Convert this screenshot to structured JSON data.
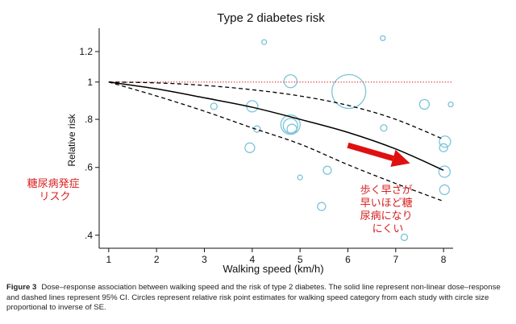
{
  "chart_data": {
    "type": "scatter",
    "title": "Type 2 diabetes risk",
    "xlabel": "Walking speed (km/h)",
    "ylabel": "Relative risk",
    "y_scale": "log",
    "xlim": [
      0.8,
      8.2
    ],
    "ylim": [
      0.37,
      1.38
    ],
    "xticks": [
      1,
      2,
      3,
      4,
      5,
      6,
      7,
      8
    ],
    "yticks": [
      {
        "value": 0.4,
        "label": ".4"
      },
      {
        "value": 0.6,
        "label": ".6"
      },
      {
        "value": 0.8,
        "label": ".8"
      },
      {
        "value": 1.0,
        "label": "1"
      },
      {
        "value": 1.2,
        "label": "1.2"
      }
    ],
    "reference_line": {
      "y": 1.0,
      "style": "dotted",
      "color": "#e04040"
    },
    "series": [
      {
        "name": "Non-linear dose-response",
        "style": "solid",
        "color": "#000000",
        "points": [
          [
            1,
            1.0
          ],
          [
            2,
            0.96
          ],
          [
            3,
            0.91
          ],
          [
            4,
            0.86
          ],
          [
            5,
            0.8
          ],
          [
            6,
            0.74
          ],
          [
            7,
            0.67
          ],
          [
            8,
            0.59
          ]
        ]
      },
      {
        "name": "Upper 95% CI",
        "style": "dashed",
        "color": "#000000",
        "points": [
          [
            1,
            1.0
          ],
          [
            2,
            0.995
          ],
          [
            3,
            0.98
          ],
          [
            4,
            0.955
          ],
          [
            5,
            0.92
          ],
          [
            6,
            0.87
          ],
          [
            7,
            0.8
          ],
          [
            8,
            0.71
          ]
        ]
      },
      {
        "name": "Lower 95% CI",
        "style": "dashed",
        "color": "#000000",
        "points": [
          [
            1,
            1.0
          ],
          [
            2,
            0.92
          ],
          [
            3,
            0.84
          ],
          [
            4,
            0.76
          ],
          [
            5,
            0.69
          ],
          [
            6,
            0.61
          ],
          [
            7,
            0.545
          ],
          [
            8,
            0.49
          ]
        ]
      }
    ],
    "points": [
      {
        "x": 4.25,
        "y": 1.27,
        "size": 3
      },
      {
        "x": 6.73,
        "y": 1.3,
        "size": 3
      },
      {
        "x": 8.15,
        "y": 0.875,
        "size": 3
      },
      {
        "x": 4.8,
        "y": 1.005,
        "size": 8
      },
      {
        "x": 6.02,
        "y": 0.945,
        "size": 21
      },
      {
        "x": 3.2,
        "y": 0.865,
        "size": 4
      },
      {
        "x": 4.0,
        "y": 0.865,
        "size": 7
      },
      {
        "x": 7.6,
        "y": 0.875,
        "size": 6
      },
      {
        "x": 4.8,
        "y": 0.775,
        "size": 12
      },
      {
        "x": 4.8,
        "y": 0.77,
        "size": 9
      },
      {
        "x": 4.83,
        "y": 0.755,
        "size": 6
      },
      {
        "x": 4.1,
        "y": 0.755,
        "size": 4
      },
      {
        "x": 6.75,
        "y": 0.76,
        "size": 4
      },
      {
        "x": 8.03,
        "y": 0.7,
        "size": 7
      },
      {
        "x": 8.0,
        "y": 0.675,
        "size": 5
      },
      {
        "x": 3.95,
        "y": 0.675,
        "size": 6
      },
      {
        "x": 5.57,
        "y": 0.59,
        "size": 5
      },
      {
        "x": 5.0,
        "y": 0.565,
        "size": 3
      },
      {
        "x": 8.02,
        "y": 0.585,
        "size": 7
      },
      {
        "x": 8.02,
        "y": 0.525,
        "size": 6
      },
      {
        "x": 5.45,
        "y": 0.475,
        "size": 5
      },
      {
        "x": 7.18,
        "y": 0.395,
        "size": 4
      }
    ],
    "marker_color": "#7cc4d8",
    "annotations": [
      {
        "text_lines": [
          "糖尿病発症",
          "リスク"
        ],
        "color": "#d92020",
        "position": "left"
      },
      {
        "text_lines": [
          "歩く早さが",
          "早いほど糖",
          "尿病になり",
          "にくい"
        ],
        "color": "#d92020",
        "position": "bottom-right"
      }
    ],
    "arrow": {
      "from": [
        6.0,
        0.685
      ],
      "to": [
        7.3,
        0.615
      ],
      "color": "#e01010"
    }
  },
  "caption": {
    "label": "Figure 3",
    "text": "Dose–response association between walking speed and the risk of type 2 diabetes. The solid line represent non-linear dose–response and dashed lines represent 95% CI. Circles represent relative risk point estimates for walking speed category from each study with circle size proportional to inverse of SE."
  }
}
